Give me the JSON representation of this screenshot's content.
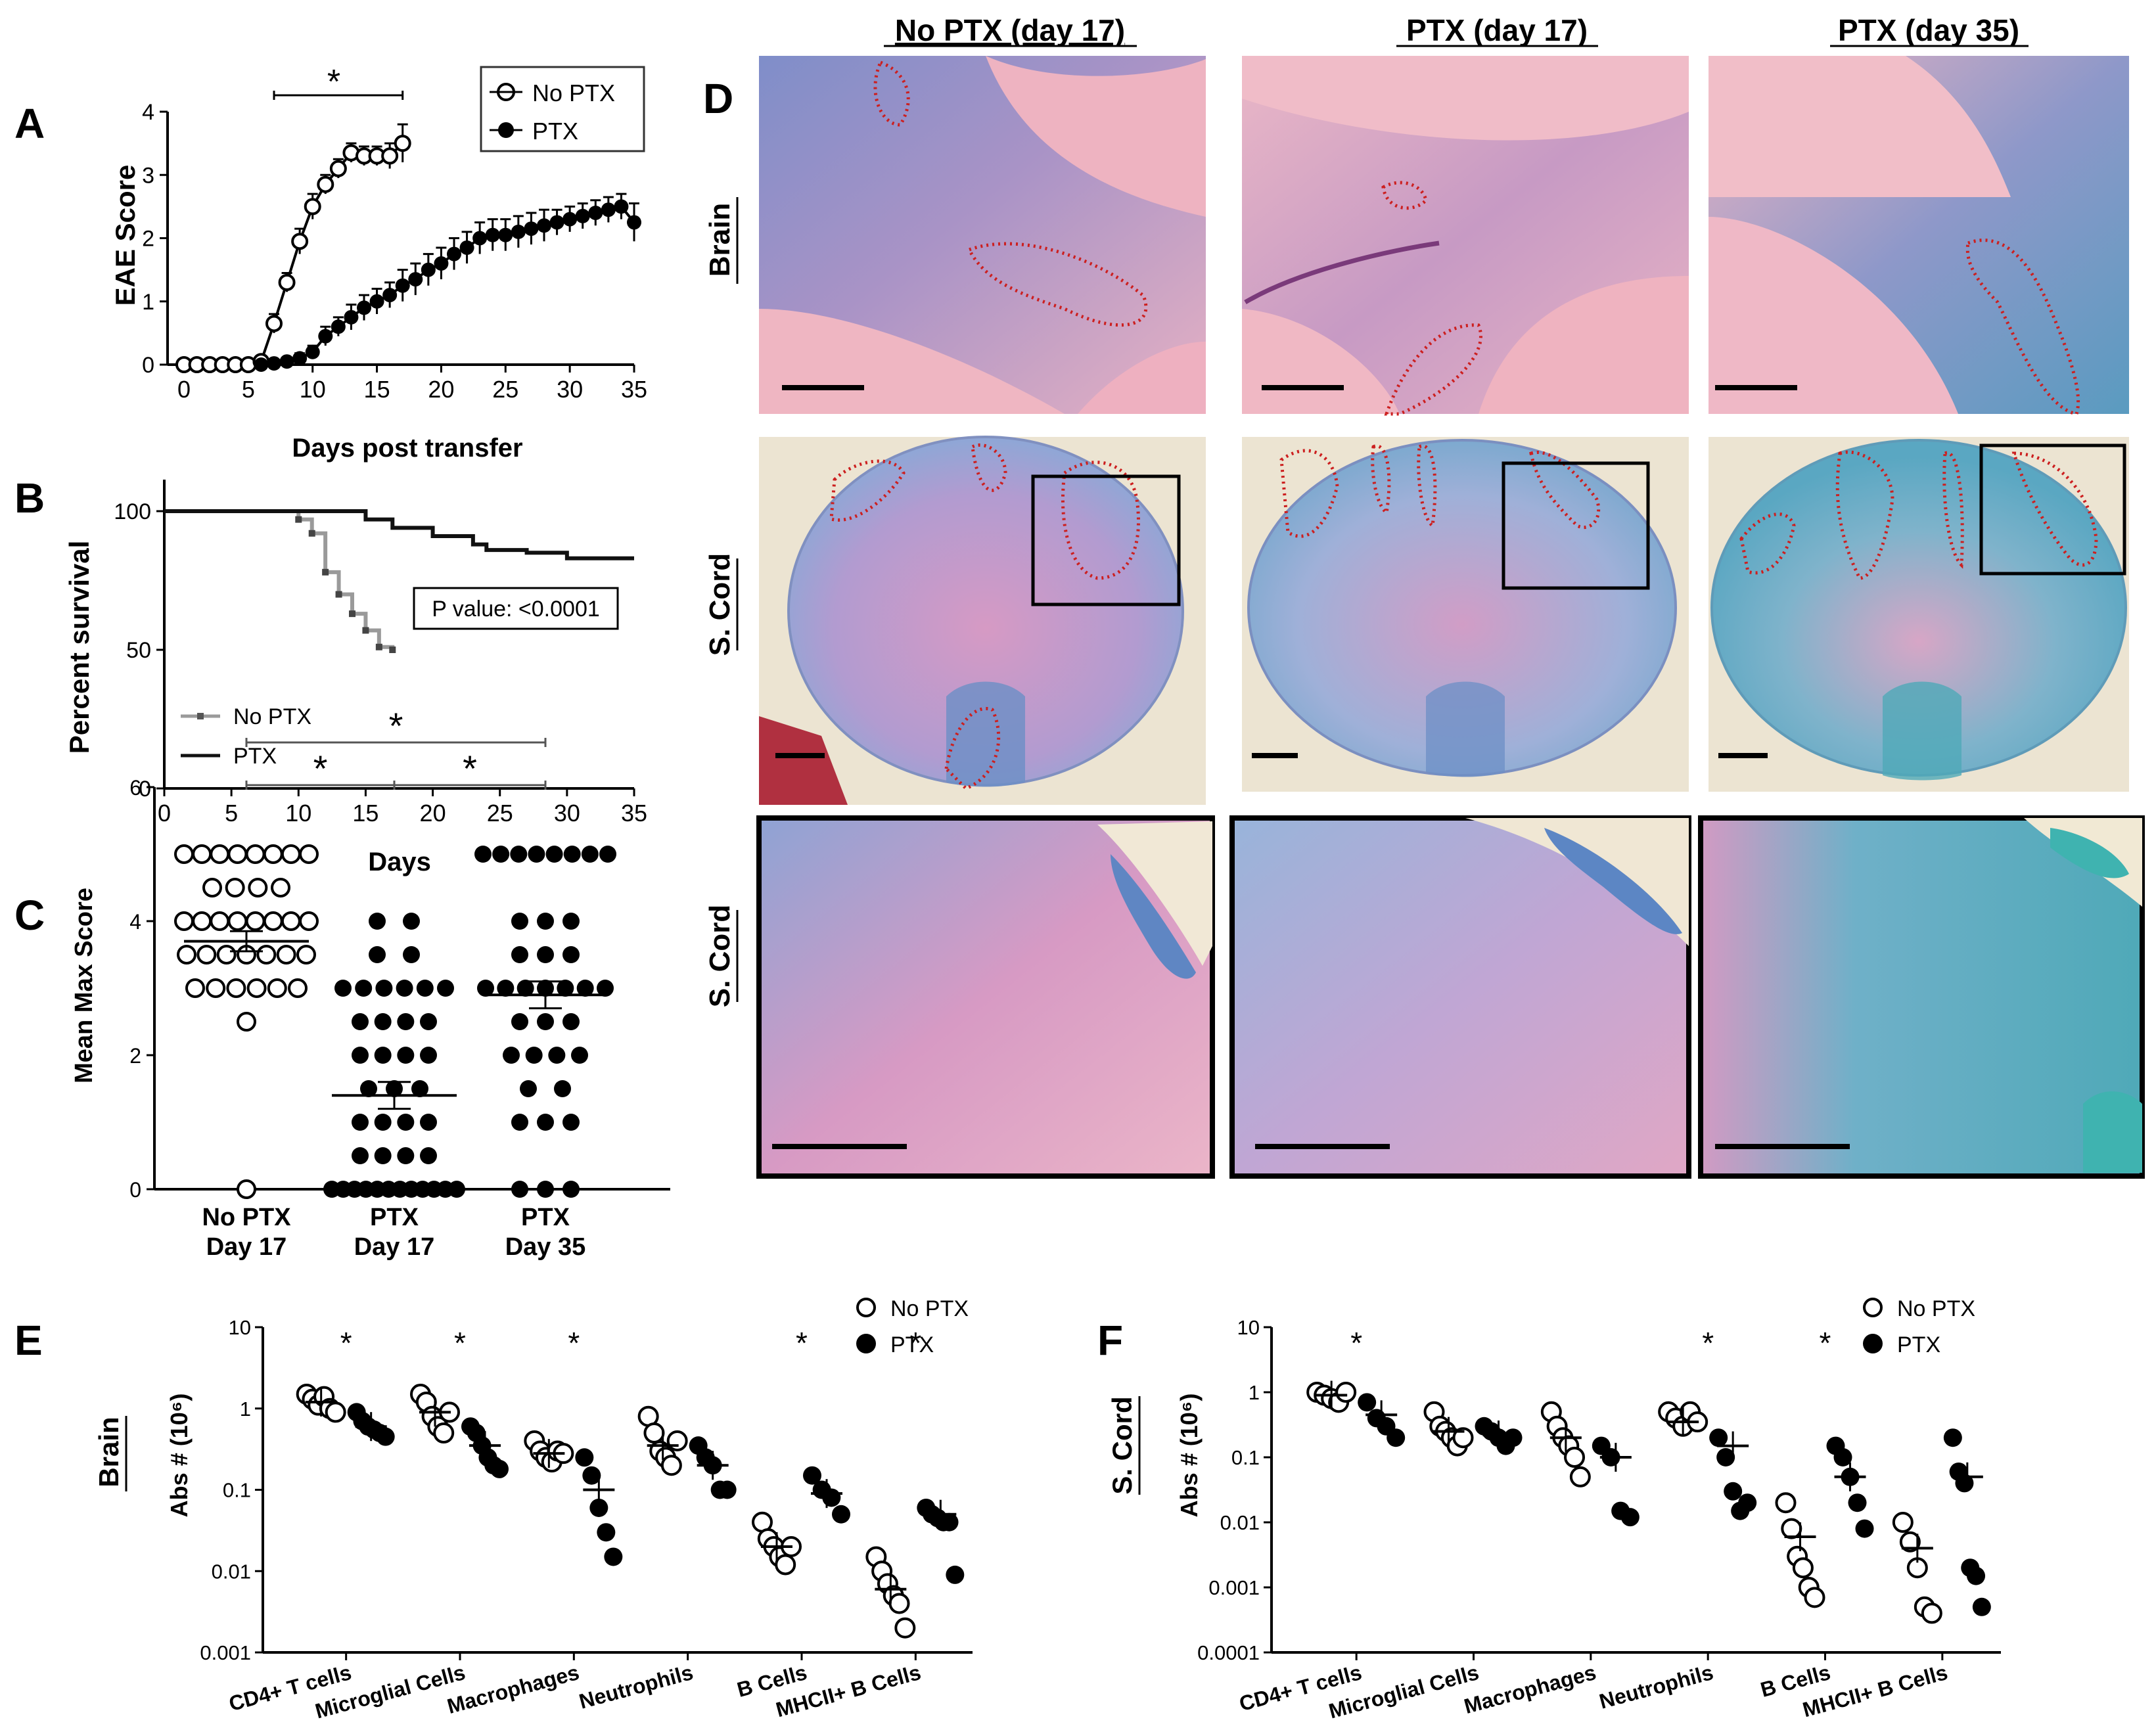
{
  "panel_letters": {
    "A": "A",
    "B": "B",
    "C": "C",
    "D": "D",
    "E": "E",
    "F": "F"
  },
  "sig_mark": "*",
  "chart_data": [
    {
      "panel": "A",
      "type": "line",
      "xlabel": "Days post transfer",
      "ylabel": "EAE Score",
      "xlim": [
        0,
        35
      ],
      "ylim": [
        0,
        4
      ],
      "xticks": [
        "0",
        "5",
        "10",
        "15",
        "20",
        "25",
        "30",
        "35"
      ],
      "yticks": [
        "0",
        "1",
        "2",
        "3",
        "4"
      ],
      "legend": {
        "placement": "top-right",
        "entries": [
          "No PTX",
          "PTX"
        ]
      },
      "significance": "*",
      "series": [
        {
          "name": "No PTX",
          "marker": "open-circle",
          "x": [
            0,
            1,
            2,
            3,
            4,
            5,
            6,
            7,
            8,
            9,
            10,
            11,
            12,
            13,
            14,
            15,
            16,
            17
          ],
          "y": [
            0,
            0,
            0,
            0,
            0,
            0,
            0.05,
            0.65,
            1.3,
            1.95,
            2.5,
            2.85,
            3.1,
            3.35,
            3.3,
            3.3,
            3.3,
            3.5
          ],
          "err": [
            0,
            0,
            0,
            0,
            0,
            0,
            0.05,
            0.15,
            0.15,
            0.2,
            0.2,
            0.15,
            0.15,
            0.15,
            0.15,
            0.15,
            0.2,
            0.3
          ]
        },
        {
          "name": "PTX",
          "marker": "filled-circle",
          "x": [
            6,
            7,
            8,
            9,
            10,
            11,
            12,
            13,
            14,
            15,
            16,
            17,
            18,
            19,
            20,
            21,
            22,
            23,
            24,
            25,
            26,
            27,
            28,
            29,
            30,
            31,
            32,
            33,
            34,
            35
          ],
          "y": [
            0,
            0.02,
            0.05,
            0.1,
            0.2,
            0.45,
            0.6,
            0.75,
            0.9,
            1.0,
            1.1,
            1.25,
            1.35,
            1.5,
            1.6,
            1.75,
            1.85,
            2.0,
            2.05,
            2.05,
            2.1,
            2.15,
            2.2,
            2.25,
            2.3,
            2.35,
            2.4,
            2.45,
            2.5,
            2.25
          ],
          "err": [
            0,
            0.02,
            0.05,
            0.08,
            0.1,
            0.15,
            0.15,
            0.2,
            0.2,
            0.2,
            0.2,
            0.25,
            0.25,
            0.25,
            0.25,
            0.25,
            0.25,
            0.25,
            0.25,
            0.25,
            0.25,
            0.25,
            0.25,
            0.2,
            0.2,
            0.2,
            0.2,
            0.2,
            0.2,
            0.3
          ]
        }
      ]
    },
    {
      "panel": "B",
      "type": "line",
      "xlabel": "Days",
      "ylabel": "Percent survival",
      "xlim": [
        0,
        35
      ],
      "ylim": [
        0,
        100
      ],
      "xticks": [
        "0",
        "5",
        "10",
        "15",
        "20",
        "25",
        "30",
        "35"
      ],
      "yticks": [
        "0",
        "50",
        "100"
      ],
      "legend": {
        "placement": "bottom-left",
        "entries": [
          "No PTX",
          "PTX"
        ]
      },
      "annotation": "P value: <0.0001",
      "series": [
        {
          "name": "No PTX",
          "color": "#9a9a9a",
          "x": [
            0,
            10,
            11,
            12,
            13,
            14,
            15,
            16,
            17
          ],
          "y": [
            100,
            97,
            92,
            78,
            70,
            63,
            57,
            51,
            50
          ]
        },
        {
          "name": "PTX",
          "color": "#111111",
          "x": [
            0,
            10,
            15,
            17,
            20,
            23,
            24,
            27,
            30,
            35
          ],
          "y": [
            100,
            100,
            97,
            94,
            91,
            88,
            86,
            85,
            83,
            83
          ]
        }
      ]
    },
    {
      "panel": "C",
      "type": "scatter",
      "ylabel": "Mean Max  Score",
      "ylim": [
        0,
        6
      ],
      "yticks": [
        "0",
        "2",
        "4",
        "6"
      ],
      "categories": [
        "No PTX Day 17",
        "PTX Day 17",
        "PTX Day 35"
      ],
      "category_lines": [
        [
          "No PTX",
          "Day 17"
        ],
        [
          "PTX",
          "Day 17"
        ],
        [
          "PTX",
          "Day 35"
        ]
      ],
      "significance": [
        "*",
        "*",
        "*"
      ],
      "groups": [
        {
          "name": "No PTX Day 17",
          "marker": "open-circle",
          "mean": 3.7,
          "sem": 0.15,
          "values": [
            5,
            5,
            5,
            5,
            5,
            5,
            5,
            5,
            4.5,
            4.5,
            4.5,
            4.5,
            4,
            4,
            4,
            4,
            4,
            4,
            4,
            4,
            3.5,
            3.5,
            3.5,
            3.5,
            3.5,
            3.5,
            3.5,
            3,
            3,
            3,
            3,
            3,
            3,
            2.5,
            0
          ]
        },
        {
          "name": "PTX Day 17",
          "marker": "filled-circle",
          "mean": 1.4,
          "sem": 0.2,
          "values": [
            4,
            4,
            3.5,
            3.5,
            3,
            3,
            3,
            3,
            3,
            3,
            2.5,
            2.5,
            2.5,
            2.5,
            2,
            2,
            2,
            2,
            1.5,
            1.5,
            1.5,
            1,
            1,
            1,
            1,
            0.5,
            0.5,
            0.5,
            0.5,
            0,
            0,
            0,
            0,
            0,
            0,
            0,
            0,
            0,
            0,
            0,
            0
          ]
        },
        {
          "name": "PTX Day 35",
          "marker": "filled-circle",
          "mean": 2.9,
          "sem": 0.2,
          "values": [
            5,
            5,
            5,
            5,
            5,
            5,
            5,
            5,
            4,
            4,
            4,
            3.5,
            3.5,
            3.5,
            3,
            3,
            3,
            3,
            3,
            3,
            3,
            2.5,
            2.5,
            2.5,
            2,
            2,
            2,
            2,
            1.5,
            1.5,
            1,
            1,
            1,
            0,
            0,
            0
          ]
        }
      ]
    },
    {
      "panel": "E",
      "type": "scatter",
      "row_label": "Brain",
      "ylabel": "Abs # (10⁶)",
      "yscale": "log",
      "ylim": [
        0.001,
        10
      ],
      "yticks": [
        "10",
        "1",
        "0.1",
        "0.01",
        "0.001"
      ],
      "legend": {
        "placement": "top-right",
        "entries": [
          "No PTX",
          "PTX"
        ]
      },
      "categories": [
        "CD4+ T cells",
        "Microglial Cells",
        "Macrophages",
        "Neutrophils",
        "B Cells",
        "MHCII+ B Cells"
      ],
      "significance": [
        "*",
        "*",
        "*",
        "",
        "*",
        "*"
      ],
      "series": [
        {
          "name": "No PTX",
          "marker": "open-circle",
          "means": [
            1.2,
            0.9,
            0.28,
            0.35,
            0.02,
            0.006
          ],
          "values": [
            [
              1.5,
              1.3,
              1.1,
              1.4,
              1.0,
              0.9
            ],
            [
              1.5,
              1.2,
              0.8,
              0.6,
              0.5,
              0.9
            ],
            [
              0.4,
              0.3,
              0.25,
              0.22,
              0.3,
              0.28
            ],
            [
              0.8,
              0.5,
              0.3,
              0.25,
              0.2,
              0.4
            ],
            [
              0.04,
              0.025,
              0.02,
              0.015,
              0.012,
              0.02
            ],
            [
              0.015,
              0.01,
              0.007,
              0.005,
              0.004,
              0.002
            ]
          ]
        },
        {
          "name": "PTX",
          "marker": "filled-circle",
          "means": [
            0.6,
            0.35,
            0.1,
            0.2,
            0.09,
            0.05
          ],
          "values": [
            [
              0.9,
              0.7,
              0.6,
              0.55,
              0.5,
              0.45
            ],
            [
              0.6,
              0.5,
              0.35,
              0.25,
              0.2,
              0.18
            ],
            [
              0.25,
              0.15,
              0.06,
              0.03,
              0.015
            ],
            [
              0.35,
              0.25,
              0.2,
              0.1,
              0.1
            ],
            [
              0.15,
              0.1,
              0.08,
              0.05
            ],
            [
              0.06,
              0.05,
              0.045,
              0.04,
              0.04,
              0.009
            ]
          ]
        }
      ]
    },
    {
      "panel": "F",
      "type": "scatter",
      "row_label": "S. Cord",
      "ylabel": "Abs # (10⁶)",
      "yscale": "log",
      "ylim": [
        0.0001,
        10
      ],
      "yticks": [
        "10",
        "1",
        "0.1",
        "0.01",
        "0.001",
        "0.0001"
      ],
      "legend": {
        "placement": "top-right",
        "entries": [
          "No PTX",
          "PTX"
        ]
      },
      "categories": [
        "CD4+ T cells",
        "Microglial Cells",
        "Macrophages",
        "Neutrophils",
        "B Cells",
        "MHCII+ B Cells"
      ],
      "significance": [
        "*",
        "",
        "",
        "*",
        "*",
        ""
      ],
      "series": [
        {
          "name": "No PTX",
          "marker": "open-circle",
          "means": [
            0.9,
            0.25,
            0.2,
            0.35,
            0.006,
            0.004
          ],
          "values": [
            [
              1.0,
              0.9,
              0.8,
              0.7,
              1.0
            ],
            [
              0.5,
              0.3,
              0.25,
              0.2,
              0.15,
              0.2
            ],
            [
              0.5,
              0.3,
              0.2,
              0.15,
              0.1,
              0.05
            ],
            [
              0.5,
              0.4,
              0.3,
              0.5,
              0.35
            ],
            [
              0.02,
              0.008,
              0.003,
              0.002,
              0.001,
              0.0007
            ],
            [
              0.01,
              0.005,
              0.002,
              0.0005,
              0.0004
            ]
          ]
        },
        {
          "name": "PTX",
          "marker": "filled-circle",
          "means": [
            0.45,
            0.22,
            0.1,
            0.15,
            0.05,
            0.05
          ],
          "values": [
            [
              0.7,
              0.4,
              0.3,
              0.2
            ],
            [
              0.3,
              0.25,
              0.2,
              0.15,
              0.2
            ],
            [
              0.15,
              0.1,
              0.015,
              0.012
            ],
            [
              0.2,
              0.1,
              0.03,
              0.015,
              0.02
            ],
            [
              0.15,
              0.1,
              0.05,
              0.02,
              0.008
            ],
            [
              0.2,
              0.06,
              0.04,
              0.002,
              0.0015,
              0.0005
            ]
          ]
        }
      ]
    }
  ],
  "panel_D": {
    "columns": [
      "No PTX (day 17)",
      "PTX (day 17)",
      "PTX (day 35)"
    ],
    "rows": [
      "Brain",
      "S. Cord",
      "S. Cord"
    ],
    "colors": {
      "pink": "#e7a8be",
      "tissue_pink": "#d993b5",
      "blue": "#6c8fc6",
      "teal": "#4fa9b8",
      "lesion_outline": "#cc1f1f",
      "background_cream": "#efe9d6"
    }
  }
}
